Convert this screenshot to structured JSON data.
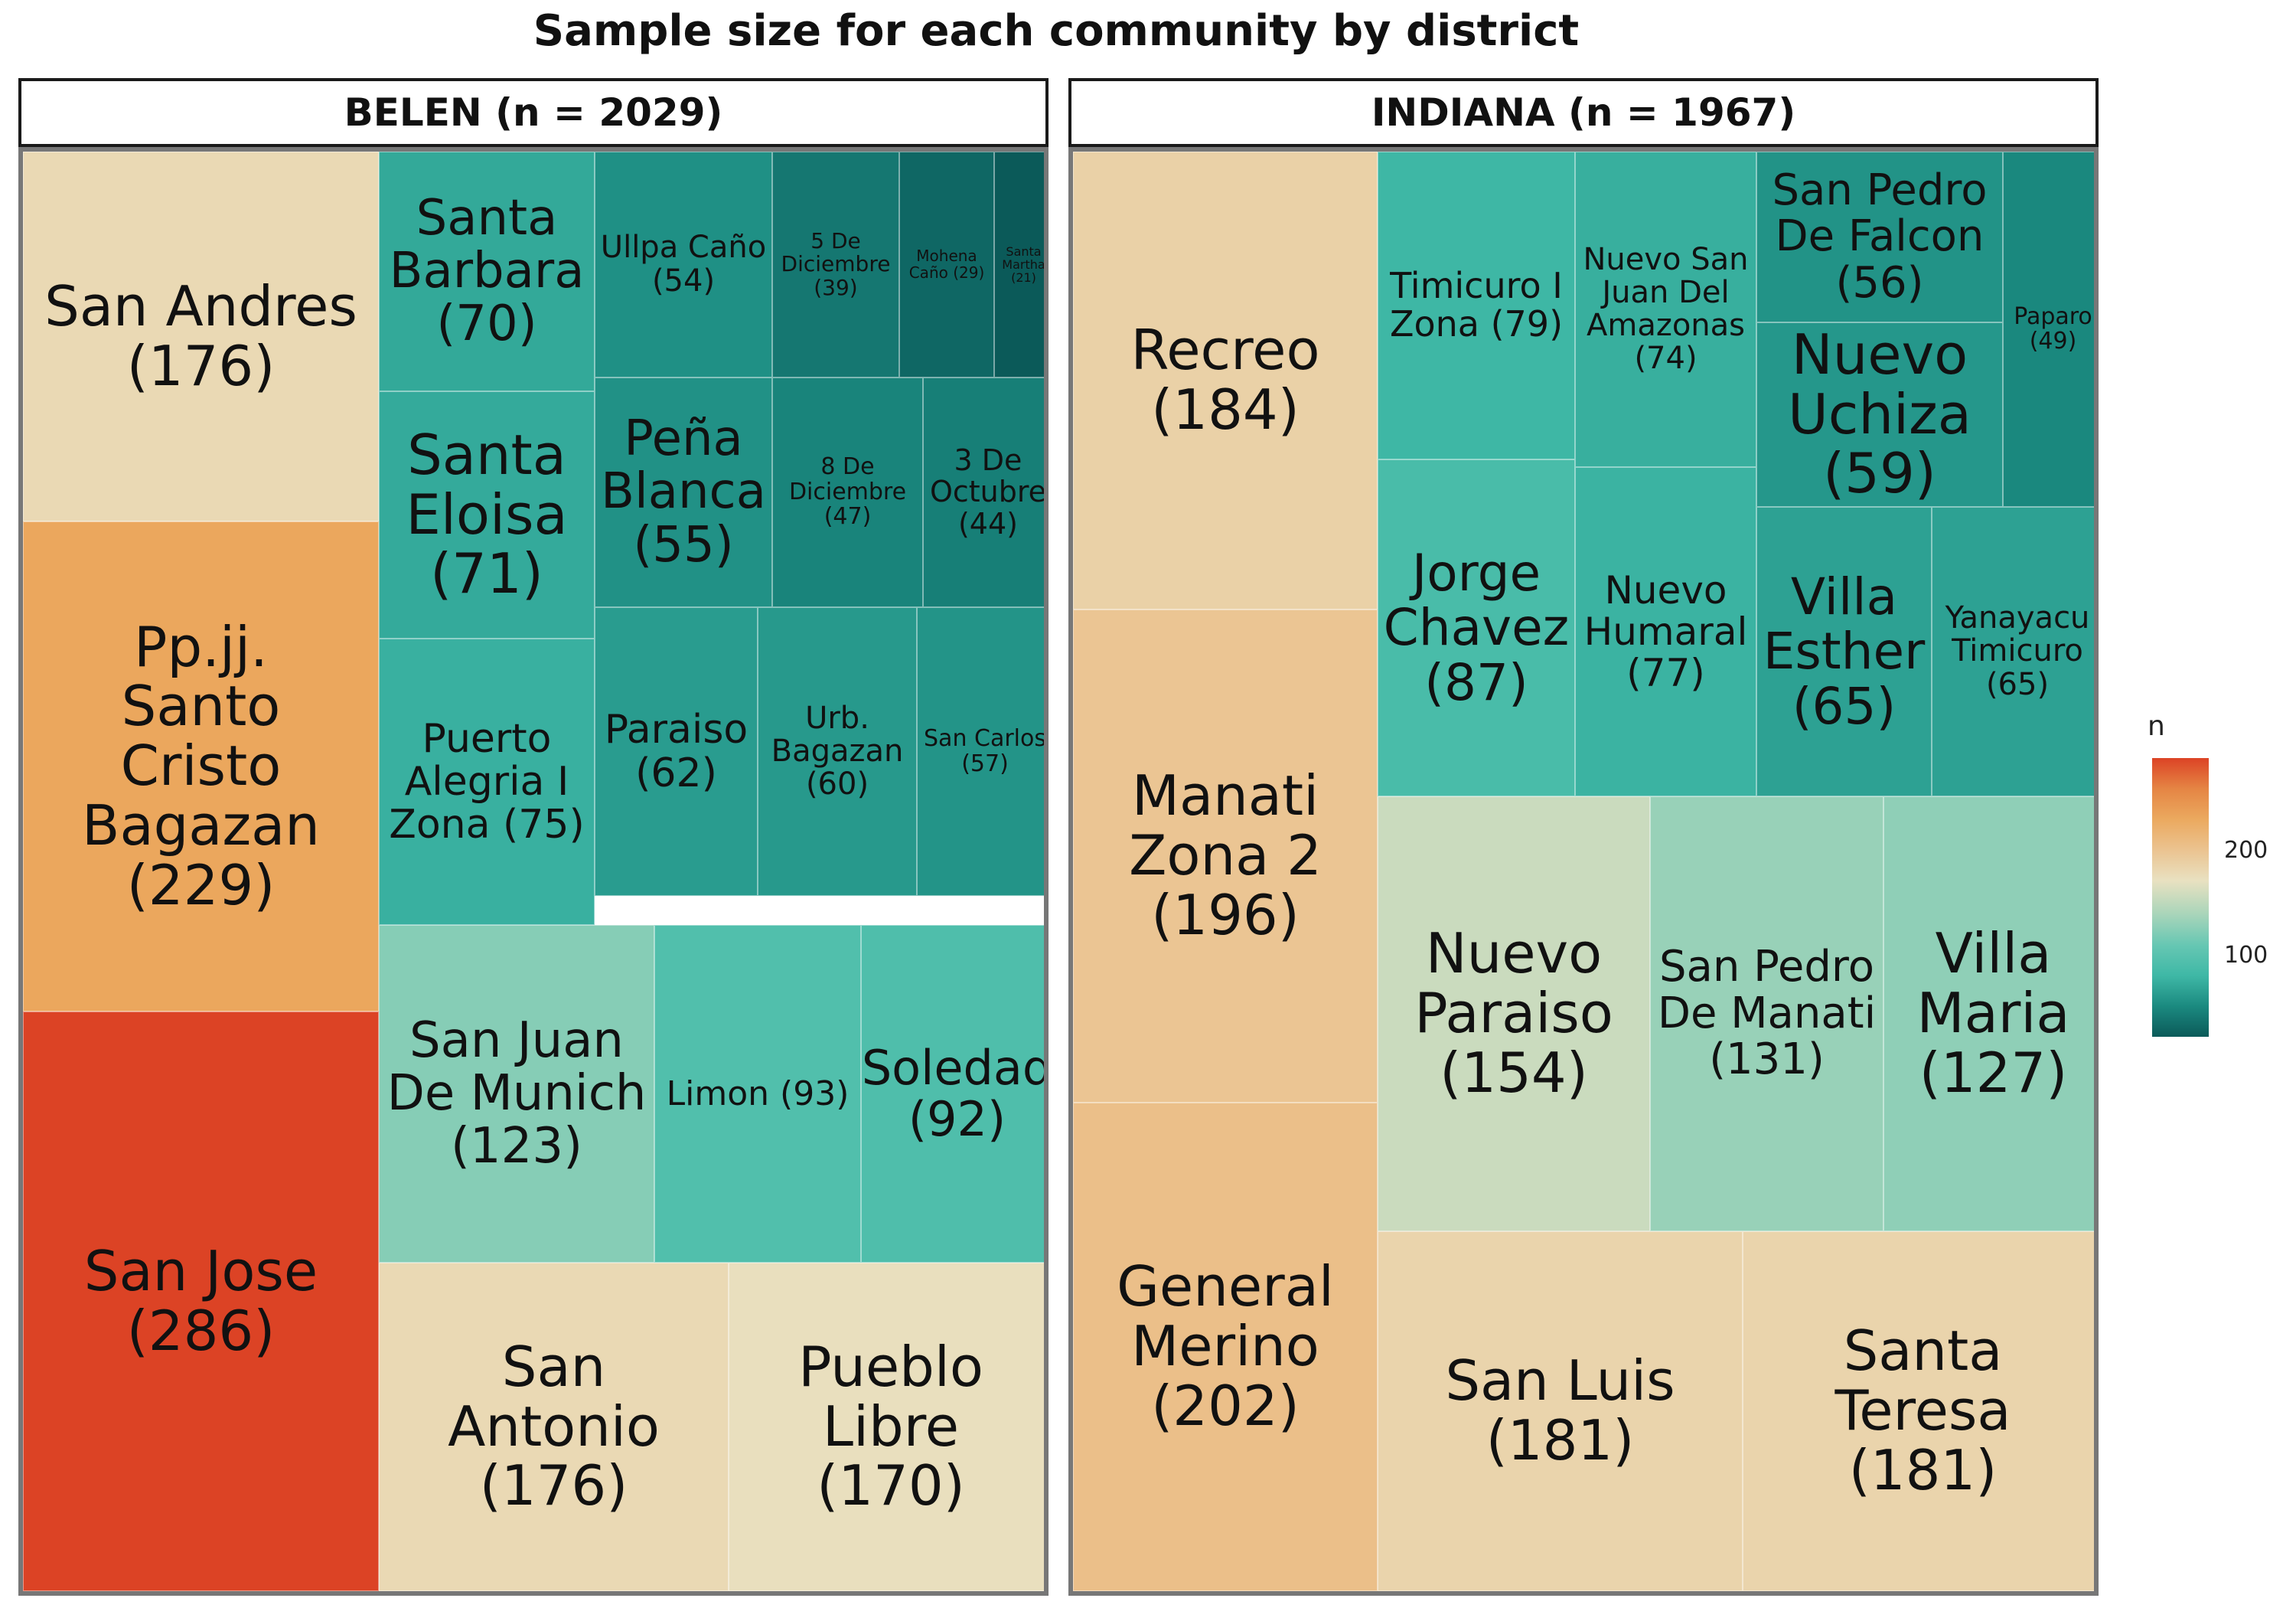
{
  "chart_data": {
    "type": "treemap",
    "title": "Sample size for each community by district",
    "legend": {
      "title": "n",
      "ticks": [
        200,
        100
      ],
      "range": [
        21,
        286
      ],
      "colors": [
        "#0b5a59",
        "#1b8a80",
        "#3fb8a6",
        "#67c7b3",
        "#a9d5ba",
        "#e9e1c1",
        "#ebc390",
        "#eba95f",
        "#e58544",
        "#dc4325"
      ],
      "placement": "right"
    },
    "panels": [
      {
        "strip": "BELEN (n = 2029)",
        "district": "BELEN",
        "total": 2029,
        "communities": [
          {
            "name": "San Andres",
            "n": 176
          },
          {
            "name": "Pp.jj. Santo Cristo Bagazan",
            "n": 229
          },
          {
            "name": "San Jose",
            "n": 286
          },
          {
            "name": "Santa Barbara",
            "n": 70
          },
          {
            "name": "Ullpa Caño",
            "n": 54
          },
          {
            "name": "5 De Diciembre",
            "n": 39
          },
          {
            "name": "Mohena Caño",
            "n": 29
          },
          {
            "name": "Santa Martha",
            "n": 21
          },
          {
            "name": "Santa Eloisa",
            "n": 71
          },
          {
            "name": "Peña Blanca",
            "n": 55
          },
          {
            "name": "8 De Diciembre",
            "n": 47
          },
          {
            "name": "3 De Octubre",
            "n": 44
          },
          {
            "name": "Puerto Alegria I Zona",
            "n": 75
          },
          {
            "name": "Paraiso",
            "n": 62
          },
          {
            "name": "Urb. Bagazan",
            "n": 60
          },
          {
            "name": "San Carlos",
            "n": 57
          },
          {
            "name": "San Juan De Munich",
            "n": 123
          },
          {
            "name": "Limon",
            "n": 93
          },
          {
            "name": "Soledad",
            "n": 92
          },
          {
            "name": "San Antonio",
            "n": 176
          },
          {
            "name": "Pueblo Libre",
            "n": 170
          }
        ],
        "labels": [
          "San Andres\n(176)",
          "Pp.jj.\nSanto\nCristo\nBagazan\n(229)",
          "San Jose\n(286)",
          "Santa\nBarbara\n(70)",
          "Ullpa Caño\n(54)",
          "5 De\nDiciembre\n(39)",
          "Mohena\nCaño (29)",
          "Santa\nMartha\n(21)",
          "Santa\nEloisa\n(71)",
          "Peña\nBlanca\n(55)",
          "8 De\nDiciembre\n(47)",
          "3 De\nOctubre\n(44)",
          "Puerto\nAlegria I\nZona (75)",
          "Paraiso\n(62)",
          "Urb.\nBagazan\n(60)",
          "San Carlos\n(57)",
          "San Juan\nDe Munich\n(123)",
          "Limon (93)",
          "Soledad\n(92)",
          "San\nAntonio\n(176)",
          "Pueblo\nLibre\n(170)"
        ]
      },
      {
        "strip": "INDIANA (n = 1967)",
        "district": "INDIANA",
        "total": 1967,
        "communities": [
          {
            "name": "Recreo",
            "n": 184
          },
          {
            "name": "Manati Zona 2",
            "n": 196
          },
          {
            "name": "General Merino",
            "n": 202
          },
          {
            "name": "Timicuro I Zona",
            "n": 79
          },
          {
            "name": "Nuevo San Juan Del Amazonas",
            "n": 74
          },
          {
            "name": "San Pedro De Falcon",
            "n": 56
          },
          {
            "name": "Paparo",
            "n": 49
          },
          {
            "name": "Nuevo Uchiza",
            "n": 59
          },
          {
            "name": "Jorge Chavez",
            "n": 87
          },
          {
            "name": "Nuevo Humaral",
            "n": 77
          },
          {
            "name": "Villa Esther",
            "n": 65
          },
          {
            "name": "Yanayacu Timicuro",
            "n": 65
          },
          {
            "name": "Nuevo Paraiso",
            "n": 154
          },
          {
            "name": "San Pedro De Manati",
            "n": 131
          },
          {
            "name": "Villa Maria",
            "n": 127
          },
          {
            "name": "San Luis",
            "n": 181
          },
          {
            "name": "Santa Teresa",
            "n": 181
          }
        ],
        "labels": [
          "Recreo\n(184)",
          "Manati\nZona 2\n(196)",
          "General\nMerino\n(202)",
          "Timicuro I\nZona (79)",
          "Nuevo San\nJuan Del\nAmazonas\n(74)",
          "San Pedro\nDe Falcon\n(56)",
          "Paparo\n(49)",
          "Nuevo\nUchiza\n(59)",
          "Jorge\nChavez\n(87)",
          "Nuevo\nHumaral\n(77)",
          "Villa\nEsther\n(65)",
          "Yanayacu\nTimicuro\n(65)",
          "Nuevo\nParaiso\n(154)",
          "San Pedro\nDe Manati\n(131)",
          "Villa\nMaria\n(127)",
          "San Luis\n(181)",
          "Santa\nTeresa\n(181)"
        ]
      }
    ]
  }
}
